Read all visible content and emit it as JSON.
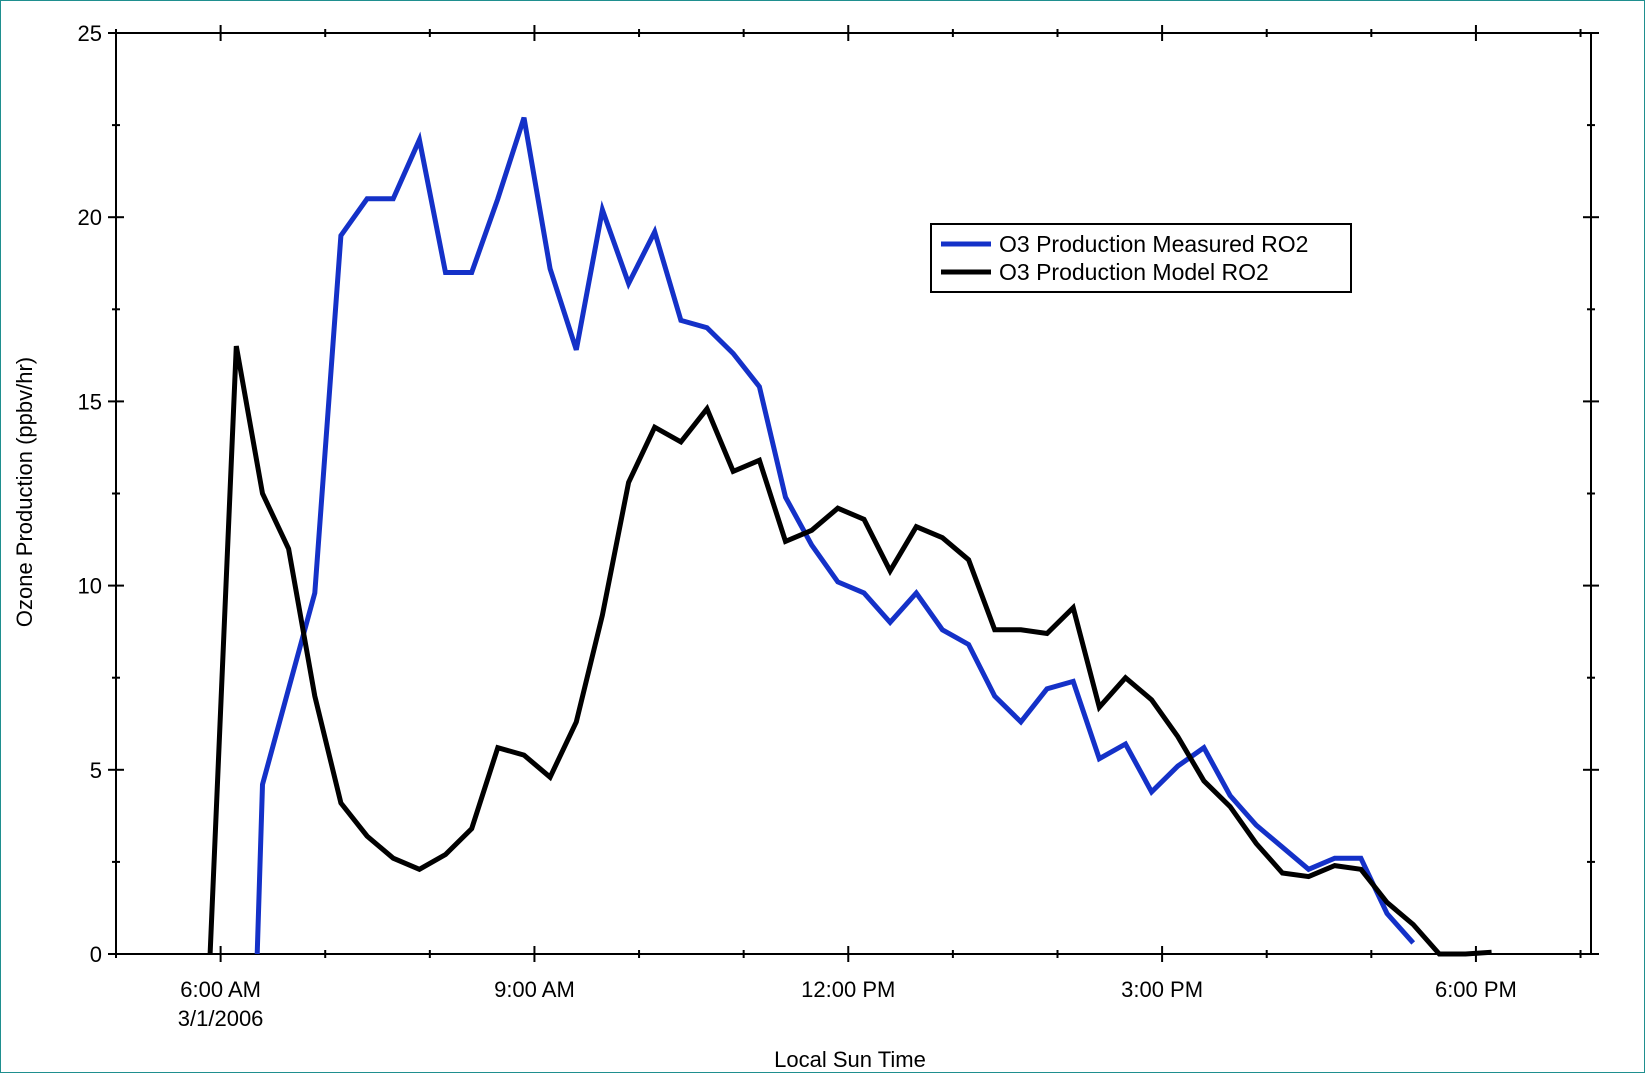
{
  "chart_data": {
    "type": "line",
    "title": "",
    "xlabel": "Local Sun Time",
    "ylabel": "Ozone Production (ppbv/hr)",
    "x_unit": "hours (local sun time)",
    "xlim": [
      5,
      19.1
    ],
    "ylim": [
      0,
      25
    ],
    "grid": false,
    "legend_position": "upper-right",
    "x_ticks": [
      {
        "value": 6,
        "label": "6:00 AM",
        "sublabel": "3/1/2006"
      },
      {
        "value": 9,
        "label": "9:00 AM",
        "sublabel": ""
      },
      {
        "value": 12,
        "label": "12:00 PM",
        "sublabel": ""
      },
      {
        "value": 15,
        "label": "3:00 PM",
        "sublabel": ""
      },
      {
        "value": 18,
        "label": "6:00 PM",
        "sublabel": ""
      }
    ],
    "x_minor_ticks": [
      5,
      7,
      8,
      10,
      11,
      13,
      14,
      16,
      17,
      19
    ],
    "y_ticks": [
      0,
      5,
      10,
      15,
      20,
      25
    ],
    "y_minor_ticks": [
      2.5,
      7.5,
      12.5,
      17.5,
      22.5
    ],
    "series": [
      {
        "name": "O3 Production Measured RO2",
        "color": "#1431c8",
        "x": [
          6.35,
          6.4,
          6.65,
          6.9,
          7.15,
          7.4,
          7.65,
          7.9,
          8.15,
          8.4,
          8.65,
          8.9,
          9.15,
          9.4,
          9.65,
          9.9,
          10.15,
          10.4,
          10.65,
          10.9,
          11.15,
          11.4,
          11.65,
          11.9,
          12.15,
          12.4,
          12.65,
          12.9,
          13.15,
          13.4,
          13.65,
          13.9,
          14.15,
          14.4,
          14.65,
          14.9,
          15.15,
          15.4,
          15.65,
          15.9,
          16.15,
          16.4,
          16.65,
          16.9,
          17.15,
          17.4
        ],
        "y": [
          0,
          4.6,
          7.2,
          9.8,
          19.5,
          20.5,
          20.5,
          22.1,
          18.5,
          18.5,
          20.5,
          22.7,
          18.6,
          16.4,
          20.2,
          18.2,
          19.6,
          17.2,
          17.0,
          16.3,
          15.4,
          12.4,
          11.1,
          10.1,
          9.8,
          9.0,
          9.8,
          8.8,
          8.4,
          7.0,
          6.3,
          7.2,
          7.4,
          5.3,
          5.7,
          4.4,
          5.1,
          5.6,
          4.3,
          3.5,
          2.9,
          2.3,
          2.6,
          2.6,
          1.1,
          0.3
        ]
      },
      {
        "name": "O3 Production Model RO2",
        "color": "#000000",
        "x": [
          5.9,
          6.15,
          6.4,
          6.65,
          6.9,
          7.15,
          7.4,
          7.65,
          7.9,
          8.15,
          8.4,
          8.65,
          8.9,
          9.15,
          9.4,
          9.65,
          9.9,
          10.15,
          10.4,
          10.65,
          10.9,
          11.15,
          11.4,
          11.65,
          11.9,
          12.15,
          12.4,
          12.65,
          12.9,
          13.15,
          13.4,
          13.65,
          13.9,
          14.15,
          14.4,
          14.65,
          14.9,
          15.15,
          15.4,
          15.65,
          15.9,
          16.15,
          16.4,
          16.65,
          16.9,
          17.15,
          17.4,
          17.65,
          17.9,
          18.15
        ],
        "y": [
          0,
          16.5,
          12.5,
          11.0,
          7.0,
          4.1,
          3.2,
          2.6,
          2.3,
          2.7,
          3.4,
          5.6,
          5.4,
          4.8,
          6.3,
          9.2,
          12.8,
          14.3,
          13.9,
          14.8,
          13.1,
          13.4,
          11.2,
          11.5,
          12.1,
          11.8,
          10.4,
          11.6,
          11.3,
          10.7,
          8.8,
          8.8,
          8.7,
          9.4,
          6.7,
          7.5,
          6.9,
          5.9,
          4.7,
          4.0,
          3.0,
          2.2,
          2.1,
          2.4,
          2.3,
          1.4,
          0.8,
          0.0,
          0.0,
          0.05
        ]
      }
    ]
  }
}
